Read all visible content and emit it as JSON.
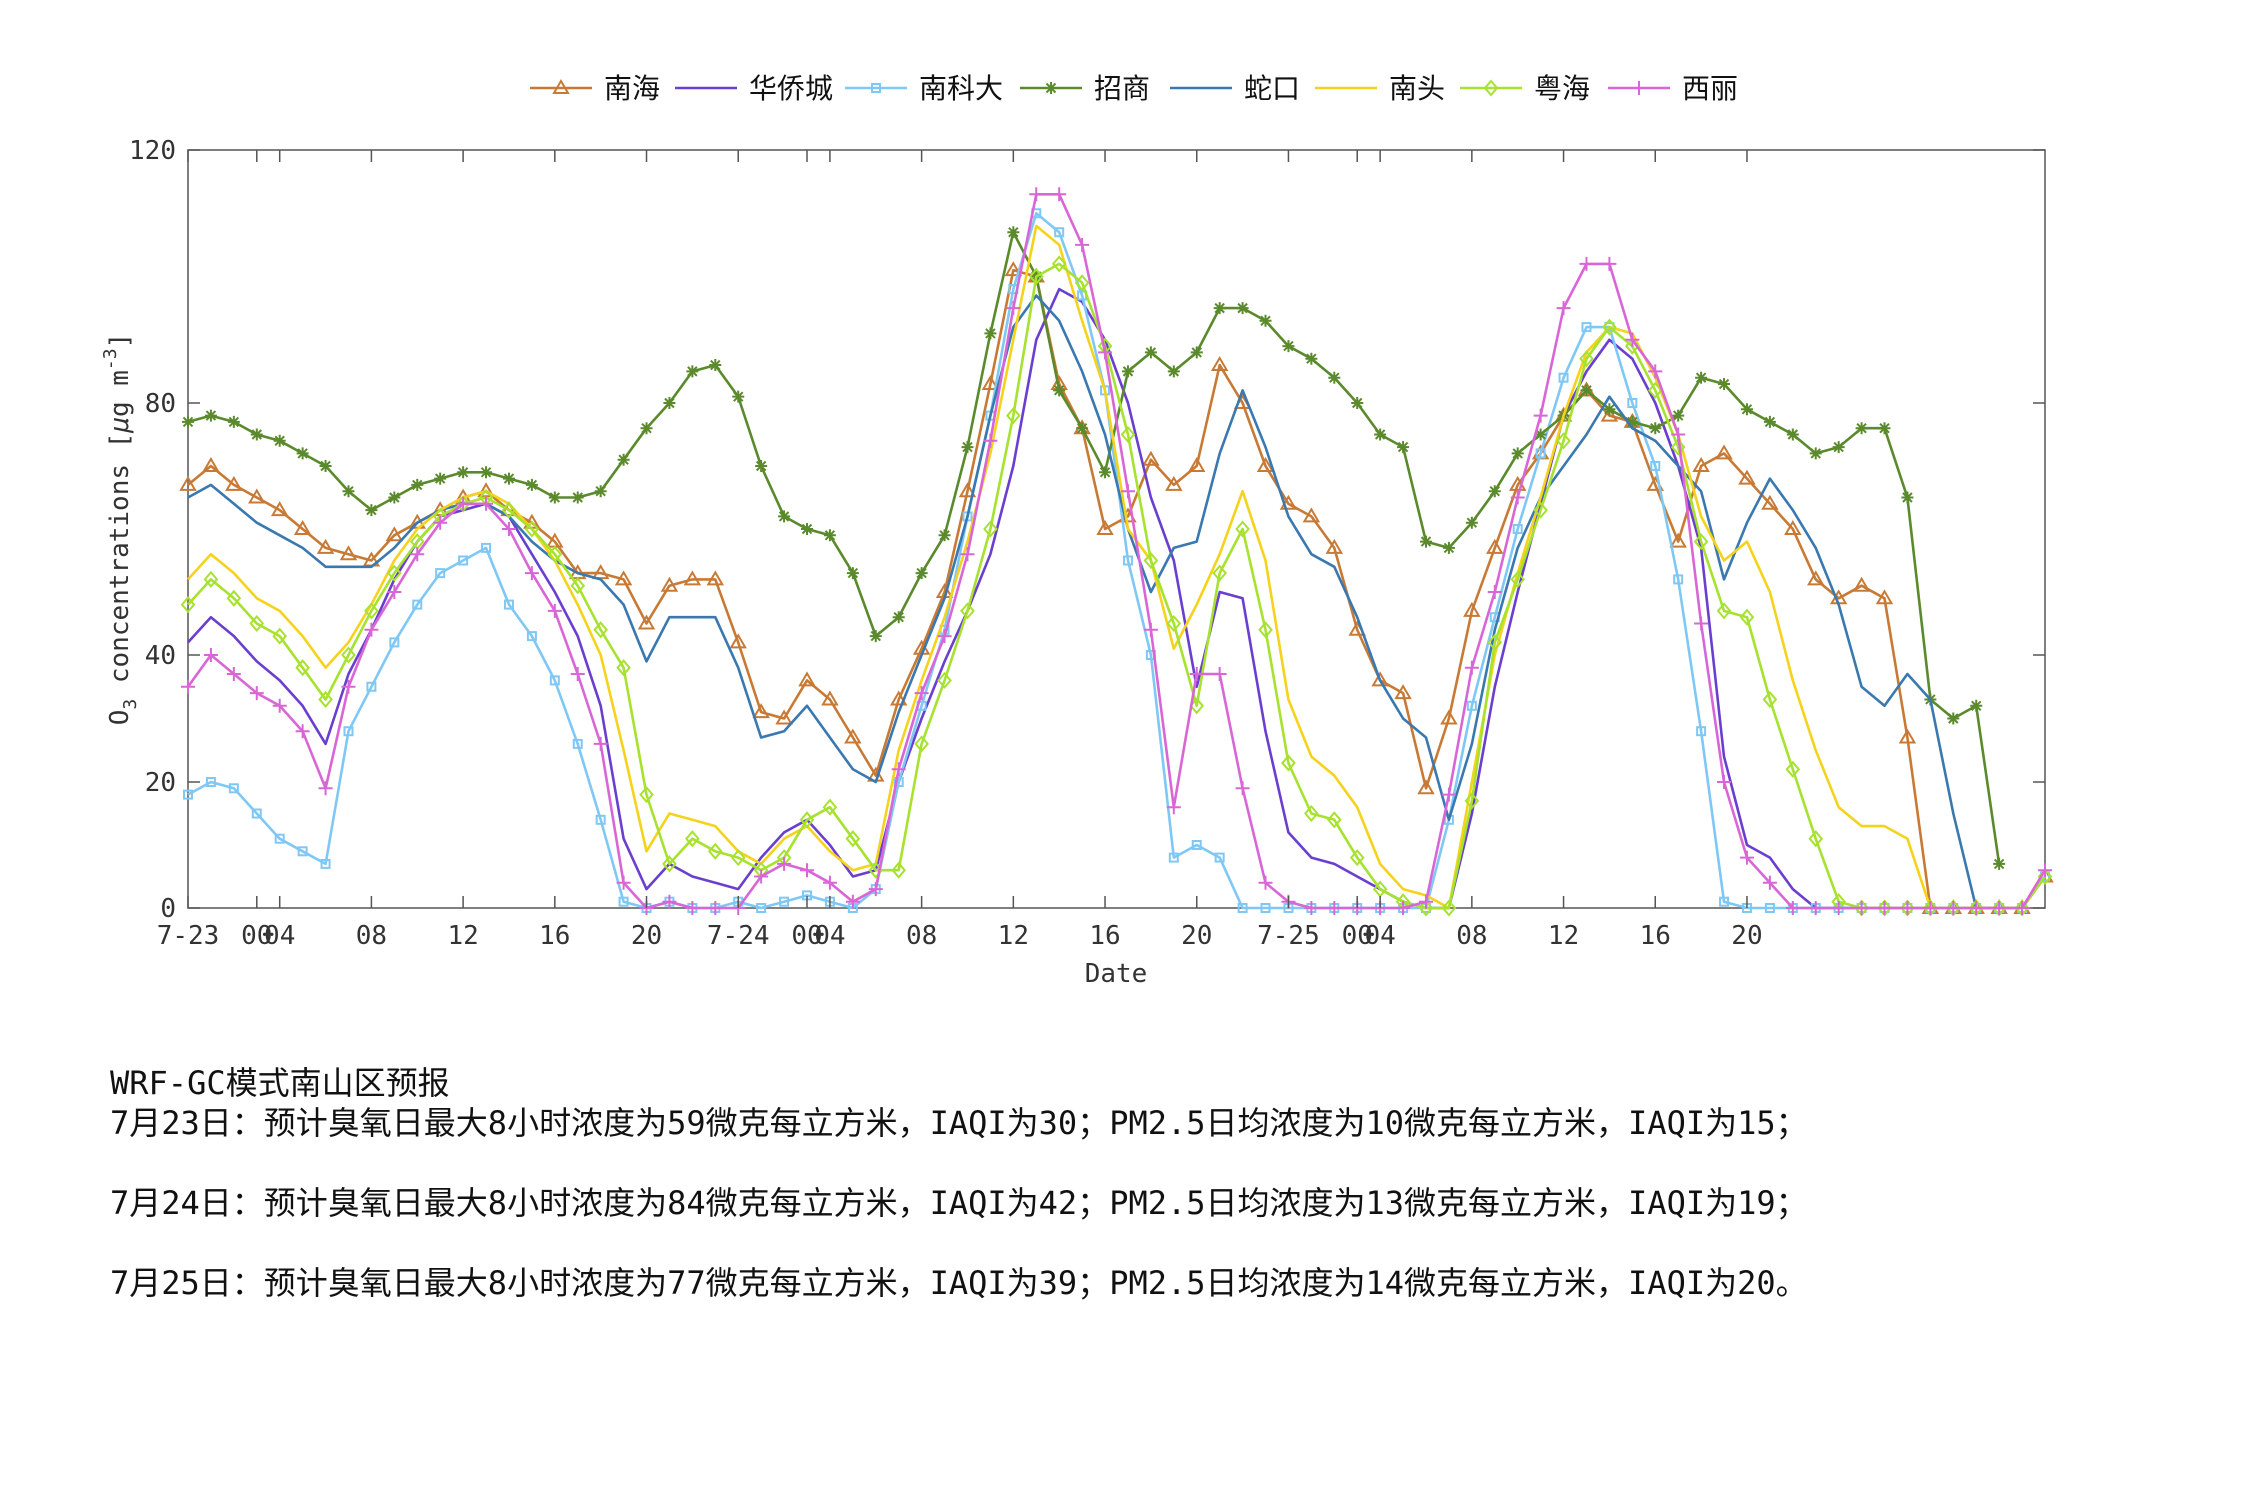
{
  "chart_data": {
    "type": "line",
    "xlabel": "Date",
    "ylabel": "O3 concentrations [μg m-3]",
    "ylim": [
      0,
      120
    ],
    "yticks": [
      0,
      20,
      40,
      80,
      120
    ],
    "xtick_labels": [
      {
        "hour": 0,
        "label": "7-23"
      },
      {
        "hour": 3,
        "label": "00"
      },
      {
        "hour": 4,
        "label": "04"
      },
      {
        "hour": 8,
        "label": "08"
      },
      {
        "hour": 12,
        "label": "12"
      },
      {
        "hour": 16,
        "label": "16"
      },
      {
        "hour": 20,
        "label": "20"
      },
      {
        "hour": 24,
        "label": "7-24"
      },
      {
        "hour": 27,
        "label": "00"
      },
      {
        "hour": 28,
        "label": "04"
      },
      {
        "hour": 32,
        "label": "08"
      },
      {
        "hour": 36,
        "label": "12"
      },
      {
        "hour": 40,
        "label": "16"
      },
      {
        "hour": 44,
        "label": "20"
      },
      {
        "hour": 48,
        "label": "7-25"
      },
      {
        "hour": 51,
        "label": "00"
      },
      {
        "hour": 52,
        "label": "04"
      },
      {
        "hour": 56,
        "label": "08"
      },
      {
        "hour": 60,
        "label": "12"
      },
      {
        "hour": 64,
        "label": "16"
      },
      {
        "hour": 68,
        "label": "20"
      }
    ],
    "xlim": [
      0,
      81
    ],
    "grid": false,
    "legend_position": "top",
    "series": [
      {
        "name": "南海",
        "color": "#c87a35",
        "marker": "triangle",
        "values": [
          67,
          70,
          67,
          65,
          63,
          60,
          57,
          56,
          55,
          59,
          61,
          63,
          65,
          66,
          63,
          61,
          58,
          53,
          53,
          52,
          45,
          51,
          52,
          52,
          42,
          31,
          30,
          36,
          33,
          27,
          21,
          33,
          41,
          50,
          66,
          83,
          101,
          100,
          83,
          76,
          60,
          62,
          71,
          67,
          70,
          86,
          80,
          70,
          64,
          62,
          57,
          44,
          36,
          34,
          19,
          30,
          47,
          57,
          67,
          72,
          78,
          82,
          78,
          77,
          67,
          58,
          70,
          72,
          68,
          64,
          60,
          52,
          49,
          51,
          49,
          27,
          0,
          0,
          0,
          0,
          0,
          5
        ]
      },
      {
        "name": "华侨城",
        "color": "#6a3fcf",
        "marker": "none",
        "values": [
          42,
          46,
          43,
          39,
          36,
          32,
          26,
          37,
          44,
          52,
          58,
          62,
          63,
          64,
          62,
          56,
          50,
          43,
          32,
          11,
          3,
          7,
          5,
          4,
          3,
          8,
          12,
          14,
          10,
          5,
          6,
          20,
          30,
          39,
          47,
          56,
          70,
          90,
          98,
          96,
          90,
          80,
          65,
          55,
          35,
          50,
          49,
          28,
          12,
          8,
          7,
          5,
          3,
          1,
          0,
          0,
          15,
          35,
          50,
          64,
          78,
          85,
          90,
          87,
          80,
          70,
          57,
          24,
          10,
          8,
          3,
          0,
          0,
          0,
          0,
          0,
          0,
          0,
          0,
          0,
          0,
          5
        ]
      },
      {
        "name": "南科大",
        "color": "#7fc8f5",
        "marker": "square",
        "values": [
          18,
          20,
          19,
          15,
          11,
          9,
          7,
          28,
          35,
          42,
          48,
          53,
          55,
          57,
          48,
          43,
          36,
          26,
          14,
          1,
          0,
          1,
          0,
          0,
          1,
          0,
          1,
          2,
          1,
          0,
          3,
          20,
          32,
          44,
          62,
          78,
          98,
          110,
          107,
          97,
          82,
          55,
          40,
          8,
          10,
          8,
          0,
          0,
          0,
          0,
          0,
          0,
          0,
          0,
          0,
          14,
          32,
          46,
          60,
          72,
          84,
          92,
          92,
          80,
          70,
          52,
          28,
          1,
          0,
          0,
          0,
          0,
          0,
          0,
          0,
          0,
          0,
          0,
          0,
          0,
          0,
          5
        ]
      },
      {
        "name": "招商",
        "color": "#5a8a2c",
        "marker": "star",
        "values": [
          77,
          78,
          77,
          75,
          74,
          72,
          70,
          66,
          63,
          65,
          67,
          68,
          69,
          69,
          68,
          67,
          65,
          65,
          66,
          71,
          76,
          80,
          85,
          86,
          81,
          70,
          62,
          60,
          59,
          53,
          43,
          46,
          53,
          59,
          73,
          91,
          107,
          100,
          82,
          76,
          69,
          85,
          88,
          85,
          88,
          95,
          95,
          93,
          89,
          87,
          84,
          80,
          75,
          73,
          58,
          57,
          61,
          66,
          72,
          75,
          78,
          82,
          79,
          77,
          76,
          78,
          84,
          83,
          79,
          77,
          75,
          72,
          73,
          76,
          76,
          65,
          33,
          30,
          32,
          7
        ]
      },
      {
        "name": "蛇口",
        "color": "#3a78b0",
        "marker": "none",
        "values": [
          65,
          67,
          64,
          61,
          59,
          57,
          54,
          54,
          54,
          57,
          61,
          63,
          64,
          64,
          62,
          58,
          55,
          53,
          52,
          48,
          39,
          46,
          46,
          46,
          38,
          27,
          28,
          32,
          27,
          22,
          20,
          31,
          40,
          49,
          62,
          78,
          92,
          97,
          93,
          85,
          75,
          60,
          50,
          57,
          58,
          72,
          82,
          73,
          62,
          56,
          54,
          46,
          36,
          30,
          27,
          14,
          26,
          44,
          57,
          65,
          70,
          75,
          81,
          76,
          74,
          70,
          66,
          52,
          61,
          68,
          63,
          57,
          48,
          35,
          32,
          37,
          33,
          15,
          0,
          0,
          0,
          5
        ]
      },
      {
        "name": "南头",
        "color": "#f5d31c",
        "marker": "none",
        "values": [
          52,
          56,
          53,
          49,
          47,
          43,
          38,
          42,
          48,
          55,
          60,
          63,
          65,
          66,
          64,
          60,
          55,
          48,
          40,
          25,
          9,
          15,
          14,
          13,
          9,
          7,
          11,
          13,
          9,
          6,
          7,
          25,
          36,
          46,
          58,
          72,
          90,
          108,
          105,
          93,
          82,
          60,
          55,
          41,
          48,
          56,
          66,
          55,
          33,
          24,
          21,
          16,
          7,
          3,
          2,
          0,
          20,
          40,
          53,
          65,
          78,
          88,
          92,
          91,
          84,
          75,
          62,
          55,
          58,
          50,
          36,
          25,
          16,
          13,
          13,
          11,
          0,
          0,
          0,
          0,
          0,
          5
        ]
      },
      {
        "name": "粤海",
        "color": "#a6e22e",
        "marker": "diamond",
        "values": [
          48,
          52,
          49,
          45,
          43,
          38,
          33,
          40,
          47,
          53,
          58,
          62,
          64,
          65,
          63,
          60,
          56,
          51,
          44,
          38,
          18,
          7,
          11,
          9,
          8,
          6,
          8,
          14,
          16,
          11,
          6,
          6,
          26,
          36,
          47,
          60,
          78,
          100,
          102,
          99,
          89,
          75,
          55,
          45,
          32,
          53,
          60,
          44,
          23,
          15,
          14,
          8,
          3,
          1,
          0,
          0,
          17,
          42,
          52,
          63,
          74,
          87,
          92,
          89,
          82,
          73,
          58,
          47,
          46,
          33,
          22,
          11,
          1,
          0,
          0,
          0,
          0,
          0,
          0,
          0,
          0,
          5
        ]
      },
      {
        "name": "西丽",
        "color": "#d966d6",
        "marker": "plus",
        "values": [
          35,
          40,
          37,
          34,
          32,
          28,
          19,
          35,
          44,
          50,
          56,
          61,
          64,
          64,
          60,
          53,
          47,
          37,
          26,
          4,
          0,
          1,
          0,
          0,
          0,
          5,
          7,
          6,
          4,
          1,
          3,
          22,
          34,
          43,
          56,
          74,
          95,
          113,
          113,
          105,
          88,
          66,
          44,
          16,
          37,
          37,
          19,
          4,
          1,
          0,
          0,
          0,
          0,
          0,
          1,
          18,
          38,
          50,
          65,
          78,
          95,
          102,
          102,
          90,
          85,
          75,
          45,
          20,
          8,
          4,
          0,
          0,
          0,
          0,
          0,
          0,
          0,
          0,
          0,
          0,
          0,
          6
        ]
      }
    ]
  },
  "caption": {
    "title": "WRF-GC模式南山区预报",
    "lines": [
      "7月23日：预计臭氧日最大8小时浓度为59微克每立方米，IAQI为30；PM2.5日均浓度为10微克每立方米，IAQI为15；",
      "7月24日：预计臭氧日最大8小时浓度为84微克每立方米，IAQI为42；PM2.5日均浓度为13微克每立方米，IAQI为19；",
      "7月25日：预计臭氧日最大8小时浓度为77微克每立方米，IAQI为39；PM2.5日均浓度为14微克每立方米，IAQI为20。"
    ]
  }
}
